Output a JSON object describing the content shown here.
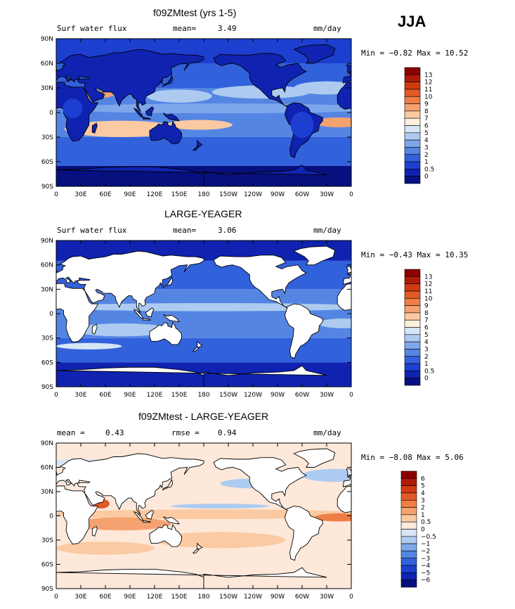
{
  "season_label": "JJA",
  "lat_ticks": [
    "90N",
    "60N",
    "30N",
    "0",
    "30S",
    "60S",
    "90S"
  ],
  "lon_ticks": [
    "0",
    "30E",
    "60E",
    "90E",
    "120E",
    "150E",
    "180",
    "150W",
    "120W",
    "90W",
    "60W",
    "30W",
    "0"
  ],
  "panels": [
    {
      "title": "f09ZMtest (yrs 1-5)",
      "left_label": "Surf water flux",
      "mean_label": "mean=",
      "mean_value": "3.49",
      "units": "mm/day",
      "minmax": "Min =  −0.82 Max =  10.52",
      "colorbar_labels": [
        "13",
        "12",
        "11",
        "10",
        "9",
        "8",
        "7",
        "6",
        "5",
        "4",
        "3",
        "2",
        "1",
        "0.5",
        "0"
      ]
    },
    {
      "title": "LARGE-YEAGER",
      "left_label": "Surf water flux",
      "mean_label": "mean=",
      "mean_value": "3.06",
      "units": "mm/day",
      "minmax": "Min =  −0.43 Max =  10.35",
      "colorbar_labels": [
        "13",
        "12",
        "11",
        "10",
        "9",
        "8",
        "7",
        "6",
        "5",
        "4",
        "3",
        "2",
        "1",
        "0.5",
        "0"
      ]
    },
    {
      "title": "f09ZMtest - LARGE-YEAGER",
      "left_label": "mean =",
      "left_value": "0.43",
      "rmse_label": "rmse =",
      "rmse_value": "0.94",
      "units": "mm/day",
      "minmax": "Min =  −8.08 Max =   5.06",
      "colorbar_labels": [
        "6",
        "5",
        "4",
        "3",
        "2",
        "1",
        "0.5",
        "0",
        "−0.5",
        "−1",
        "−2",
        "−3",
        "−4",
        "−5",
        "−6"
      ]
    }
  ],
  "colors": {
    "flux_scale": [
      "#8b0000",
      "#b01b08",
      "#d13a10",
      "#e25a25",
      "#ef7e45",
      "#f6a170",
      "#fbcaa2",
      "#fdf0dc",
      "#d6e6f6",
      "#adcbf0",
      "#7ea6ea",
      "#5585e3",
      "#3261dc",
      "#1d3fcf",
      "#0f23b0",
      "#07107f"
    ],
    "diff_scale": [
      "#8b0000",
      "#b01b08",
      "#d13a10",
      "#e25a25",
      "#ef7e45",
      "#f6a170",
      "#fbcaa2",
      "#fde8da",
      "#d6e6f6",
      "#adcbf0",
      "#7ea6ea",
      "#5585e3",
      "#3261dc",
      "#1d3fcf",
      "#0f23b0",
      "#07107f"
    ]
  }
}
